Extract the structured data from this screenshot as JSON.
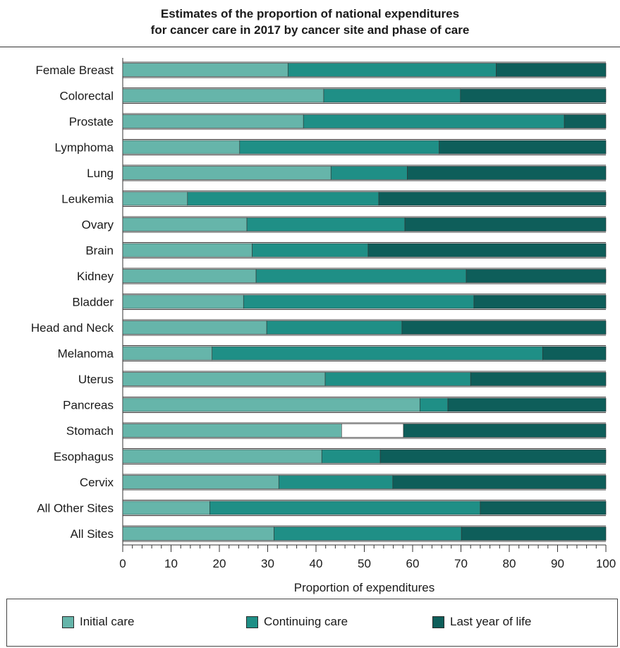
{
  "title_line1": "Estimates of the proportion of national expenditures",
  "title_line2": "for cancer care in 2017 by cancer site and phase of care",
  "chart_data": {
    "type": "bar",
    "orientation": "horizontal",
    "stacked": true,
    "categories": [
      "Female Breast",
      "Colorectal",
      "Prostate",
      "Lymphoma",
      "Lung",
      "Leukemia",
      "Ovary",
      "Brain",
      "Kidney",
      "Bladder",
      "Head and Neck",
      "Melanoma",
      "Uterus",
      "Pancreas",
      "Stomach",
      "Esophagus",
      "Cervix",
      "All Other Sites",
      "All Sites"
    ],
    "series": [
      {
        "name": "Initial care",
        "color": "#66b5aa",
        "values": [
          34.2,
          41.6,
          37.4,
          24.2,
          43.1,
          13.4,
          25.7,
          26.8,
          27.6,
          25.0,
          29.8,
          18.5,
          41.9,
          61.5,
          45.3,
          41.2,
          32.3,
          18.0,
          31.3
        ]
      },
      {
        "name": "Continuing care",
        "color": "#1f8f86",
        "values": [
          43.1,
          28.3,
          54.0,
          41.3,
          15.8,
          39.6,
          32.7,
          24.0,
          43.5,
          47.7,
          28.0,
          68.4,
          30.1,
          5.8,
          12.8,
          12.1,
          23.6,
          56.0,
          38.8
        ]
      },
      {
        "name": "Last year of life",
        "color": "#0e5e5a",
        "values": [
          22.7,
          30.1,
          8.6,
          34.5,
          41.1,
          47.0,
          41.6,
          49.2,
          28.9,
          27.3,
          42.2,
          13.1,
          28.0,
          32.7,
          41.9,
          46.7,
          44.1,
          26.0,
          29.9
        ]
      }
    ],
    "highlight": {
      "category": "Stomach",
      "series": "Continuing care",
      "fill": "#ffffff"
    },
    "xlabel": "Proportion of expenditures",
    "ylabel": "",
    "xlim": [
      0,
      100
    ],
    "xticks": [
      0,
      10,
      20,
      30,
      40,
      50,
      60,
      70,
      80,
      90,
      100
    ],
    "minor_tick_step": 2,
    "grid": false,
    "legend_position": "bottom"
  }
}
